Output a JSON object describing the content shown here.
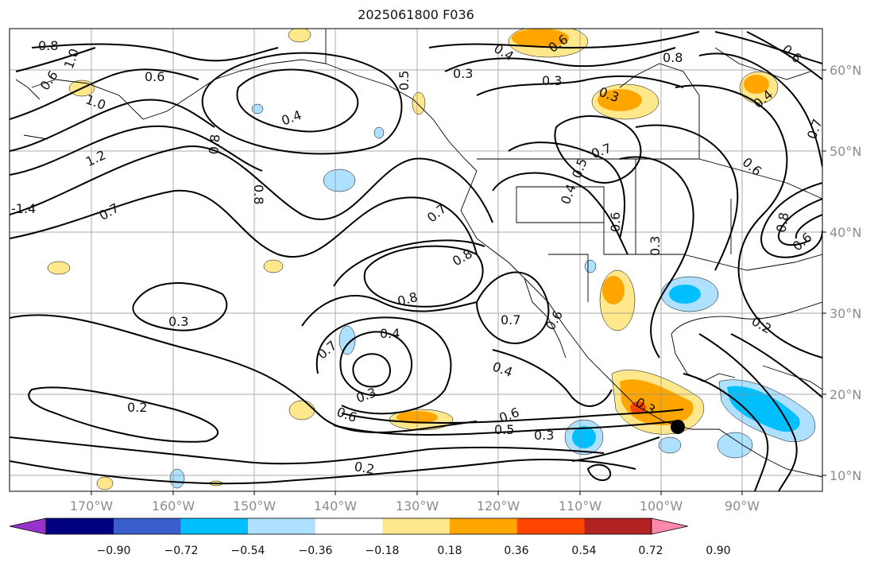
{
  "title": "2025061800 F036",
  "lon_labels": [
    "170°W",
    "160°W",
    "150°W",
    "140°W",
    "130°W",
    "120°W",
    "110°W",
    "100°W",
    "90°W"
  ],
  "lat_labels": [
    "60°N",
    "50°N",
    "40°N",
    "30°N",
    "20°N",
    "10°N"
  ],
  "colorbar": {
    "tick_labels": [
      "−0.90",
      "−0.72",
      "−0.54",
      "−0.36",
      "−0.18",
      "0.18",
      "0.36",
      "0.54",
      "0.72",
      "0.90"
    ],
    "colors": [
      "#9932cc",
      "#000080",
      "#3a5fcd",
      "#00bfff",
      "#aee1ff",
      "#ffffff",
      "#ffe88c",
      "#ffa500",
      "#ff4500",
      "#b22222",
      "#ff88aa"
    ]
  },
  "contour_labels": [
    "0.8",
    "1.0",
    "0.6",
    "0.6",
    "1.0",
    "1.2",
    "-1.4",
    "0.7",
    "0.8",
    "0.8",
    "0.4",
    "0.5",
    "0.3",
    "0.3",
    "0.4",
    "0.6",
    "0.8",
    "0.3",
    "0.4",
    "0.5",
    "0.7",
    "0.4",
    "0.6",
    "0.6",
    "0.3",
    "0.6",
    "0.8",
    "0.6",
    "0.7",
    "0.8",
    "0.8",
    "0.7",
    "0.7",
    "0.4",
    "0.3",
    "0.6",
    "0.4",
    "0.6",
    "0.5",
    "0.3",
    "0.3",
    "0.2",
    "0.2",
    "0.2",
    "0.3",
    "0.6",
    "0.7"
  ],
  "marker": "storm-location"
}
